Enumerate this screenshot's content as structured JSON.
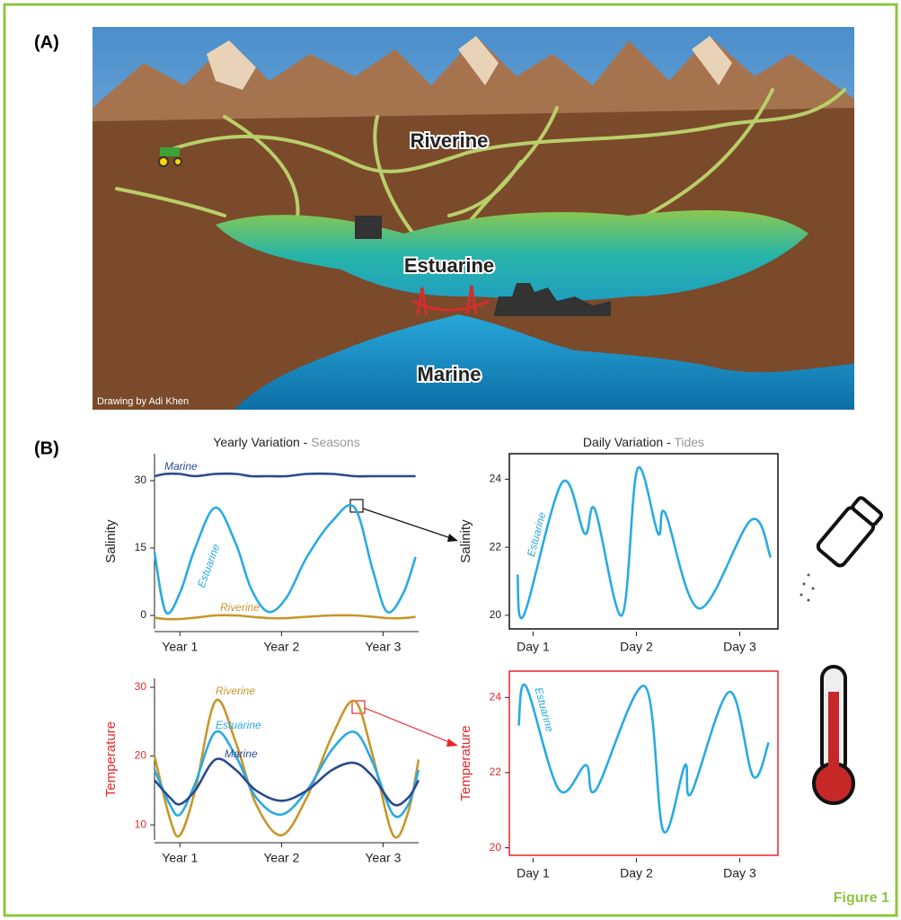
{
  "figure_label": "Figure 1",
  "panel_a": {
    "label": "(A)",
    "regions": [
      "Riverine",
      "Estuarine",
      "Marine"
    ],
    "credit": "Drawing by Adi Khen"
  },
  "panel_b": {
    "label": "(B)"
  },
  "chart_data": [
    {
      "type": "line",
      "title": {
        "main": "Yearly Variation -",
        "note": "Seasons"
      },
      "ylabel": "Salinity",
      "label_color": "#222222",
      "frame": false,
      "x": [
        0.75,
        0.86,
        1.0,
        1.15,
        1.35,
        1.55,
        1.7,
        1.87,
        2.05,
        2.25,
        2.5,
        2.72,
        2.9,
        3.04,
        3.2,
        3.32
      ],
      "xlim": [
        0.75,
        3.35
      ],
      "xticks": [
        {
          "value": 1,
          "label": "Year 1"
        },
        {
          "value": 2,
          "label": "Year 2"
        },
        {
          "value": 3,
          "label": "Year 3"
        }
      ],
      "ylim": [
        -3,
        36
      ],
      "yticks": [
        0,
        15,
        30
      ],
      "series": [
        {
          "name": "Marine",
          "color": "#2b4a8e",
          "values": [
            31,
            31.5,
            31.5,
            31,
            31.5,
            31.5,
            31,
            31,
            31,
            31.5,
            31.5,
            31,
            31,
            31,
            31,
            31
          ]
        },
        {
          "name": "Estuarine",
          "color": "#29abe2",
          "values": [
            14,
            0.8,
            5,
            15,
            24,
            16,
            6,
            0.8,
            4,
            13,
            21,
            24,
            10,
            0.8,
            5,
            13
          ]
        },
        {
          "name": "Riverine",
          "color": "#c8962a",
          "values": [
            -0.5,
            -0.8,
            -0.8,
            -0.5,
            0,
            0,
            -0.3,
            -0.6,
            -0.6,
            -0.3,
            0,
            0,
            -0.3,
            -0.6,
            -0.6,
            -0.3
          ]
        }
      ]
    },
    {
      "type": "line",
      "title": {
        "main": "Daily Variation -",
        "note": "Tides"
      },
      "ylabel": "Salinity",
      "label_color": "#222222",
      "frame": true,
      "frame_color": "#111111",
      "x": [
        0.85,
        0.91,
        1.28,
        1.5,
        1.6,
        1.86,
        2.01,
        2.21,
        2.28,
        2.61,
        3.11,
        3.3
      ],
      "xlim": [
        0.77,
        3.37
      ],
      "xticks": [
        {
          "value": 1,
          "label": "Day 1"
        },
        {
          "value": 2,
          "label": "Day 2"
        },
        {
          "value": 3,
          "label": "Day 3"
        }
      ],
      "ylim": [
        19.6,
        24.75
      ],
      "yticks": [
        20,
        22,
        24
      ],
      "series": [
        {
          "name": "Estuarine",
          "color": "#29abe2",
          "values": [
            21.2,
            20.0,
            23.9,
            22.4,
            23.1,
            20.0,
            24.3,
            22.4,
            23.0,
            20.2,
            22.8,
            21.7
          ]
        }
      ]
    },
    {
      "type": "line",
      "ylabel": "Temperature",
      "label_color": "#e8262a",
      "frame": false,
      "x": [
        0.75,
        0.9,
        1.0,
        1.15,
        1.35,
        1.55,
        1.75,
        2.0,
        2.25,
        2.5,
        2.72,
        2.9,
        3.1,
        3.25,
        3.35
      ],
      "xlim": [
        0.75,
        3.35
      ],
      "xticks": [
        {
          "value": 1,
          "label": "Year 1"
        },
        {
          "value": 2,
          "label": "Year 2"
        },
        {
          "value": 3,
          "label": "Year 3"
        }
      ],
      "ylim": [
        7.8,
        31.3
      ],
      "yticks": [
        10,
        20,
        30
      ],
      "series": [
        {
          "name": "Riverine",
          "color": "#c8962a",
          "values": [
            20,
            11,
            8.5,
            15,
            28,
            22,
            13,
            8.5,
            14,
            23,
            28,
            20,
            8.5,
            12,
            19.5
          ]
        },
        {
          "name": "Estuarine",
          "color": "#29abe2",
          "values": [
            18,
            13,
            11.5,
            16,
            23.5,
            20,
            14,
            11.5,
            15,
            21,
            23.5,
            19,
            11.5,
            13,
            18
          ]
        },
        {
          "name": "Marine",
          "color": "#2b4a8e",
          "values": [
            16.5,
            14,
            13,
            15,
            19.5,
            18,
            15,
            13.5,
            15,
            18,
            19,
            17,
            13,
            14,
            16.5
          ]
        }
      ]
    },
    {
      "type": "line",
      "ylabel": "Temperature",
      "label_color": "#e8262a",
      "frame": true,
      "frame_color": "#e8262a",
      "x": [
        0.86,
        0.93,
        1.25,
        1.51,
        1.61,
        2.08,
        2.26,
        2.47,
        2.53,
        2.9,
        3.13,
        3.28
      ],
      "xlim": [
        0.77,
        3.37
      ],
      "xticks": [
        {
          "value": 1,
          "label": "Day 1"
        },
        {
          "value": 2,
          "label": "Day 2"
        },
        {
          "value": 3,
          "label": "Day 3"
        }
      ],
      "ylim": [
        19.8,
        24.7
      ],
      "yticks": [
        20,
        22,
        24
      ],
      "series": [
        {
          "name": "Estuarine",
          "color": "#29abe2",
          "values": [
            23.25,
            24.3,
            21.55,
            22.2,
            21.55,
            24.3,
            20.45,
            22.2,
            21.45,
            24.15,
            21.9,
            22.8
          ]
        }
      ]
    }
  ]
}
